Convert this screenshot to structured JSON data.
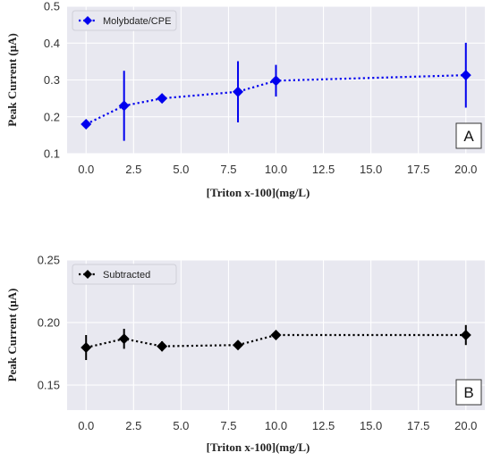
{
  "chart_data": [
    {
      "type": "line",
      "panel_label": "A",
      "xlabel": "[Triton x-100](mg/L)",
      "ylabel": "Peak Current (μA)",
      "xlim": [
        -1,
        21
      ],
      "ylim": [
        0.1,
        0.5
      ],
      "xticks": [
        "0.0",
        "2.5",
        "5.0",
        "7.5",
        "10.0",
        "12.5",
        "15.0",
        "17.5",
        "20.0"
      ],
      "yticks": [
        "0.1",
        "0.2",
        "0.3",
        "0.4",
        "0.5"
      ],
      "grid": true,
      "legend_position": "top-left",
      "colors": {
        "series": "#0000ee",
        "background": "#e8e8f0",
        "grid": "#ffffff"
      },
      "series": [
        {
          "name": "Molybdate/CPE",
          "x": [
            0,
            2,
            4,
            8,
            10,
            20
          ],
          "y": [
            0.18,
            0.23,
            0.25,
            0.268,
            0.298,
            0.313
          ],
          "yerr": [
            0.005,
            0.095,
            0.005,
            0.083,
            0.043,
            0.088
          ]
        }
      ]
    },
    {
      "type": "line",
      "panel_label": "B",
      "xlabel": "[Triton x-100](mg/L)",
      "ylabel": "Peak Current (μA)",
      "xlim": [
        -1,
        21
      ],
      "ylim": [
        0.13,
        0.25
      ],
      "xticks": [
        "0.0",
        "2.5",
        "5.0",
        "7.5",
        "10.0",
        "12.5",
        "15.0",
        "17.5",
        "20.0"
      ],
      "yticks": [
        "0.15",
        "0.20",
        "0.25"
      ],
      "grid": true,
      "legend_position": "top-left",
      "colors": {
        "series": "#000000",
        "background": "#e8e8f0",
        "grid": "#ffffff"
      },
      "series": [
        {
          "name": "Subtracted",
          "x": [
            0,
            2,
            4,
            8,
            10,
            20
          ],
          "y": [
            0.18,
            0.187,
            0.181,
            0.182,
            0.19,
            0.19
          ],
          "yerr": [
            0.01,
            0.008,
            0.004,
            0.003,
            0.003,
            0.008
          ]
        }
      ]
    }
  ]
}
